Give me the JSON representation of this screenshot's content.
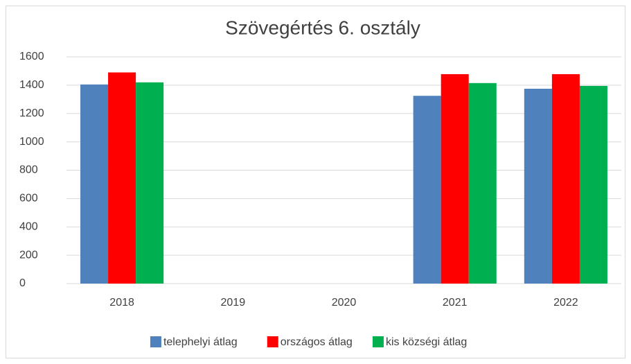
{
  "chart_data": {
    "type": "bar",
    "title": "Szövegértés 6. osztály",
    "categories": [
      "2018",
      "2019",
      "2020",
      "2021",
      "2022"
    ],
    "series": [
      {
        "name": "telephelyi átlag",
        "color": "#4f81bd",
        "values": [
          1405,
          null,
          null,
          1325,
          1375
        ]
      },
      {
        "name": "országos átlag",
        "color": "#ff0000",
        "values": [
          1490,
          null,
          null,
          1478,
          1478
        ]
      },
      {
        "name": "kis községi átlag",
        "color": "#00b050",
        "values": [
          1420,
          null,
          null,
          1415,
          1395
        ]
      }
    ],
    "ylim": [
      0,
      1600
    ],
    "yticks": [
      0,
      200,
      400,
      600,
      800,
      1000,
      1200,
      1400,
      1600
    ],
    "grid": true,
    "legend": "bottom"
  }
}
